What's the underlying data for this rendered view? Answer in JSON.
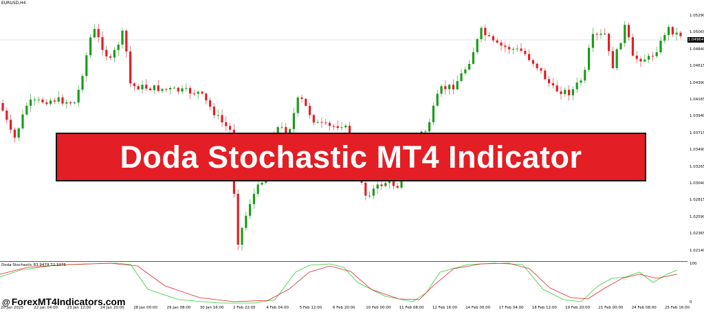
{
  "chart": {
    "symbol_label": "EURUSD,H4",
    "current_price": "1.04964",
    "price_ticks": [
      "1.05290",
      "1.05065",
      "1.04840",
      "1.04615",
      "1.04390",
      "1.04165",
      "1.03940",
      "1.03715",
      "1.03490",
      "1.03265",
      "1.03040",
      "1.02815",
      "1.02590",
      "1.02365",
      "1.02140"
    ],
    "time_ticks": [
      "20 Jan 2025",
      "22 Jan 04:00",
      "23 Jan 12:00",
      "24 Jan 20:00",
      "28 Jan 00:00",
      "29 Jan 08:00",
      "30 Jan 16:00",
      "2 Feb 22:05",
      "4 Feb 04:00",
      "5 Feb 12:00",
      "6 Feb 20:00",
      "10 Feb 00:00",
      "11 Feb 08:00",
      "12 Feb 16:00",
      "14 Feb 00:00",
      "17 Feb 04:00",
      "18 Feb 12:00",
      "19 Feb 20:00",
      "21 Feb 00:00",
      "24 Feb 08:00",
      "25 Feb 16:00"
    ],
    "up_color": "#1a9c1a",
    "down_color": "#e31e24"
  },
  "indicator": {
    "title": "Doda-Stochastic 83.9479 72.3375",
    "levels": [
      "100",
      "0"
    ],
    "main_line_color": "#33cc33",
    "signal_line_color": "#e31e24"
  },
  "banner": {
    "text": "Doda Stochastic MT4 Indicator"
  },
  "watermark": {
    "symbol": "@",
    "text": "ForexMT4Indicators.com"
  }
}
